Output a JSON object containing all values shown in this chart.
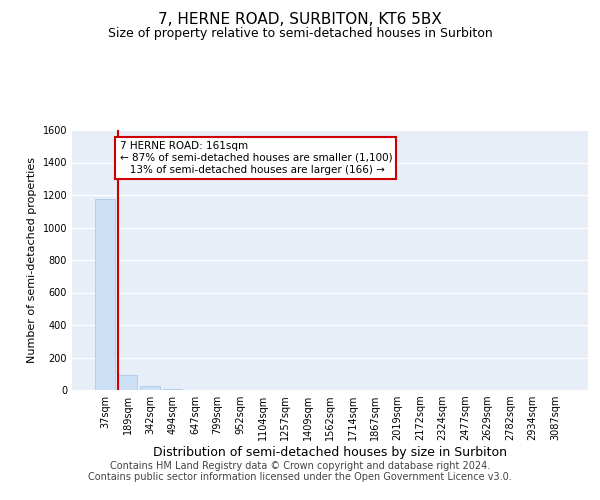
{
  "title": "7, HERNE ROAD, SURBITON, KT6 5BX",
  "subtitle": "Size of property relative to semi-detached houses in Surbiton",
  "xlabel": "Distribution of semi-detached houses by size in Surbiton",
  "ylabel": "Number of semi-detached properties",
  "bar_labels": [
    "37sqm",
    "189sqm",
    "342sqm",
    "494sqm",
    "647sqm",
    "799sqm",
    "952sqm",
    "1104sqm",
    "1257sqm",
    "1409sqm",
    "1562sqm",
    "1714sqm",
    "1867sqm",
    "2019sqm",
    "2172sqm",
    "2324sqm",
    "2477sqm",
    "2629sqm",
    "2782sqm",
    "2934sqm",
    "3087sqm"
  ],
  "bar_values": [
    1175,
    90,
    22,
    4,
    2,
    1,
    0,
    0,
    0,
    0,
    0,
    0,
    0,
    0,
    0,
    0,
    0,
    0,
    0,
    0,
    0
  ],
  "bar_color": "#cce0f5",
  "bar_edge_color": "#a0c4e8",
  "vline_color": "#cc0000",
  "ylim": [
    0,
    1600
  ],
  "yticks": [
    0,
    200,
    400,
    600,
    800,
    1000,
    1200,
    1400,
    1600
  ],
  "annotation_text": "7 HERNE ROAD: 161sqm\n← 87% of semi-detached houses are smaller (1,100)\n   13% of semi-detached houses are larger (166) →",
  "annotation_box_color": "#ffffff",
  "annotation_box_edge_color": "#cc0000",
  "footer_text": "Contains HM Land Registry data © Crown copyright and database right 2024.\nContains public sector information licensed under the Open Government Licence v3.0.",
  "bg_color": "#e8eef8",
  "fig_bg_color": "#ffffff",
  "grid_color": "#ffffff",
  "title_fontsize": 11,
  "subtitle_fontsize": 9,
  "xlabel_fontsize": 9,
  "ylabel_fontsize": 8,
  "footer_fontsize": 7,
  "tick_fontsize": 7,
  "annotation_fontsize": 7.5
}
